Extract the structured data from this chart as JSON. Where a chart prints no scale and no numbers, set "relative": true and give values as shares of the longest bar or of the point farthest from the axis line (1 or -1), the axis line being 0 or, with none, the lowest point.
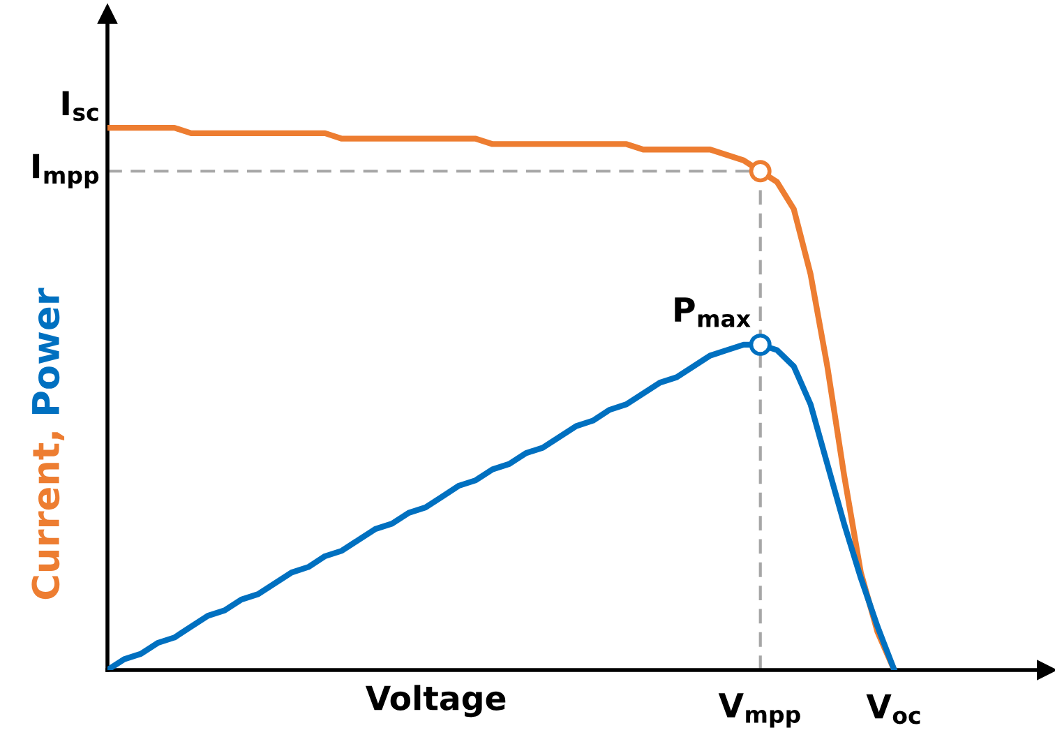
{
  "chart_data": {
    "type": "line",
    "relative": true,
    "xlabel": "Voltage",
    "categories": [
      null,
      null,
      null,
      null,
      null,
      null,
      null,
      null,
      null,
      null,
      null,
      null,
      null,
      null,
      null,
      null,
      null,
      null,
      null,
      null,
      null,
      null,
      null,
      null,
      null,
      null,
      null,
      null,
      null,
      null,
      null,
      null,
      null,
      null,
      null,
      null,
      null,
      null,
      null,
      "V$_{mpp}$",
      null,
      null,
      null,
      null,
      null,
      null,
      null,
      "V$_{oc}$",
      null,
      null,
      null,
      null,
      null,
      null,
      null,
      null,
      null
    ],
    "series": [
      {
        "name": "Current,",
        "color": "#ed7d31",
        "values": [
          1.0,
          1.0,
          1.0,
          1.0,
          1.0,
          0.99,
          0.99,
          0.99,
          0.99,
          0.99,
          0.99,
          0.99,
          0.99,
          0.99,
          0.98,
          0.98,
          0.98,
          0.98,
          0.98,
          0.98,
          0.98,
          0.98,
          0.98,
          0.97,
          0.97,
          0.97,
          0.97,
          0.97,
          0.97,
          0.97,
          0.97,
          0.97,
          0.96,
          0.96,
          0.96,
          0.96,
          0.96,
          0.95,
          0.94,
          0.92,
          0.9,
          0.85,
          0.73,
          0.56,
          0.36,
          0.18,
          0.07,
          0.0,
          null,
          null,
          null,
          null,
          null,
          null,
          null,
          null,
          null
        ]
      },
      {
        "name": "Power",
        "color": "#0070c0",
        "values": [
          0.0,
          0.02,
          0.03,
          0.05,
          0.06,
          0.08,
          0.1,
          0.11,
          0.13,
          0.14,
          0.16,
          0.18,
          0.19,
          0.21,
          0.22,
          0.24,
          0.26,
          0.27,
          0.29,
          0.3,
          0.32,
          0.34,
          0.35,
          0.37,
          0.38,
          0.4,
          0.41,
          0.43,
          0.45,
          0.46,
          0.48,
          0.49,
          0.51,
          0.53,
          0.54,
          0.56,
          0.58,
          0.59,
          0.6,
          0.6,
          0.59,
          0.56,
          0.49,
          0.38,
          0.27,
          0.17,
          0.08,
          0.0,
          null,
          null,
          null,
          null,
          null,
          null,
          null,
          null,
          null
        ]
      },
      {
        "type": "scatter",
        "marker": "circle",
        "color": "#ed7d31",
        "values": [
          null,
          null,
          null,
          null,
          null,
          null,
          null,
          null,
          null,
          null,
          null,
          null,
          null,
          null,
          null,
          null,
          null,
          null,
          null,
          null,
          null,
          null,
          null,
          null,
          null,
          null,
          null,
          null,
          null,
          null,
          null,
          null,
          null,
          null,
          null,
          null,
          null,
          null,
          null,
          0.92,
          null,
          null,
          null,
          null,
          null,
          null,
          null,
          null,
          null,
          null,
          null,
          null,
          null,
          null,
          null,
          null,
          null
        ]
      },
      {
        "type": "scatter",
        "marker": "circle",
        "color": "#0070c0",
        "values": [
          null,
          null,
          null,
          null,
          null,
          null,
          null,
          null,
          null,
          null,
          null,
          null,
          null,
          null,
          null,
          null,
          null,
          null,
          null,
          null,
          null,
          null,
          null,
          null,
          null,
          null,
          null,
          null,
          null,
          null,
          null,
          null,
          null,
          null,
          null,
          null,
          null,
          null,
          null,
          0.6,
          null,
          null,
          null,
          null,
          null,
          null,
          null,
          null,
          null,
          null,
          null,
          null,
          null,
          null,
          null,
          null,
          null
        ]
      }
    ],
    "ref_lines": [
      {
        "axis": "y",
        "value": 0.92,
        "label": "I$_{mpp}$",
        "color": "#a6a6a6",
        "line_style": "dashed"
      }
    ],
    "annotations": [
      "I$_{sc}$",
      {
        "text": "P$_{max}$",
        "x": "V$_{mpp}$",
        "y": 0.6
      }
    ]
  }
}
